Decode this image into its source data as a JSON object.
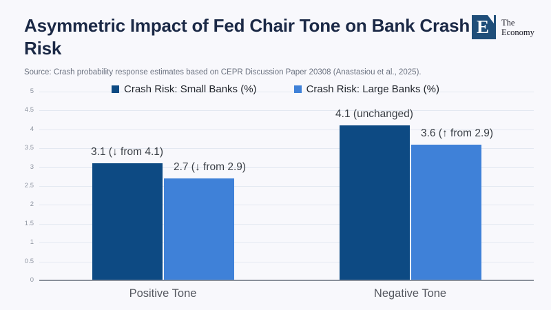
{
  "header": {
    "title": "Asymmetric Impact of Fed Chair Tone on Bank Crash Risk",
    "source_note": "Source: Crash probability response estimates based on CEPR Discussion Paper 20308 (Anastasiou et al., 2025).",
    "logo": {
      "letter": "E",
      "name_line1": "The",
      "name_line2": "Economy",
      "brand_color": "#1f4e79"
    }
  },
  "chart_data": {
    "type": "bar",
    "title": "Asymmetric Impact of Fed Chair Tone on Bank Crash Risk",
    "categories": [
      "Positive Tone",
      "Negative Tone"
    ],
    "series": [
      {
        "name": "Crash Risk: Small Banks (%)",
        "color": "#0d4a83",
        "values": [
          3.1,
          4.1
        ],
        "point_labels": [
          "3.1 (↓ from 4.1)",
          "4.1 (unchanged)"
        ]
      },
      {
        "name": "Crash Risk: Large Banks (%)",
        "color": "#3f81d8",
        "values": [
          2.7,
          3.6
        ],
        "point_labels": [
          "2.7 (↓ from 2.9)",
          "3.6 (↑ from 2.9)"
        ]
      }
    ],
    "xlabel": "",
    "ylabel": "",
    "ylim": [
      0,
      5
    ],
    "yticks": [
      0,
      0.5,
      1,
      1.5,
      2,
      2.5,
      3,
      3.5,
      4,
      4.5,
      5
    ],
    "grid": true,
    "grid_color": "#e3e8f1",
    "axis_color": "#8a909b",
    "background_color": "#f8f8fc",
    "legend_position": "top"
  }
}
